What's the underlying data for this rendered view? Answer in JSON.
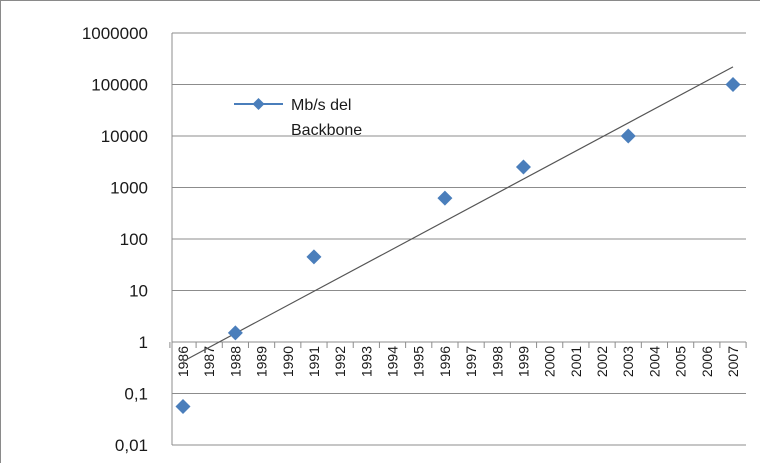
{
  "chart_data": {
    "type": "scatter",
    "y_scale": "log",
    "ylim": [
      0.01,
      1000000
    ],
    "y_ticks": [
      "1000000",
      "100000",
      "10000",
      "1000",
      "100",
      "10",
      "1",
      "0,1",
      "0,01"
    ],
    "categories": [
      "1986",
      "1987",
      "1988",
      "1989",
      "1990",
      "1991",
      "1992",
      "1993",
      "1994",
      "1995",
      "1996",
      "1997",
      "1998",
      "1999",
      "2000",
      "2001",
      "2002",
      "2003",
      "2004",
      "2005",
      "2006",
      "2007"
    ],
    "series": [
      {
        "name": "Mb/s del Backbone",
        "color": "#4a7ebb",
        "marker": "diamond",
        "points": [
          {
            "x": "1986",
            "y": 0.056
          },
          {
            "x": "1988",
            "y": 1.5
          },
          {
            "x": "1991",
            "y": 45
          },
          {
            "x": "1996",
            "y": 622
          },
          {
            "x": "1999",
            "y": 2500
          },
          {
            "x": "2003",
            "y": 10000
          },
          {
            "x": "2007",
            "y": 100000
          }
        ]
      }
    ],
    "trendline": {
      "type": "exponential",
      "color": "#555555",
      "from": {
        "x": "1986",
        "y": 0.42
      },
      "to": {
        "x": "2007",
        "y": 220000
      }
    },
    "legend": {
      "label_line1": "Mb/s del",
      "label_line2": "Backbone",
      "placement": "top-left"
    },
    "grid": true
  }
}
